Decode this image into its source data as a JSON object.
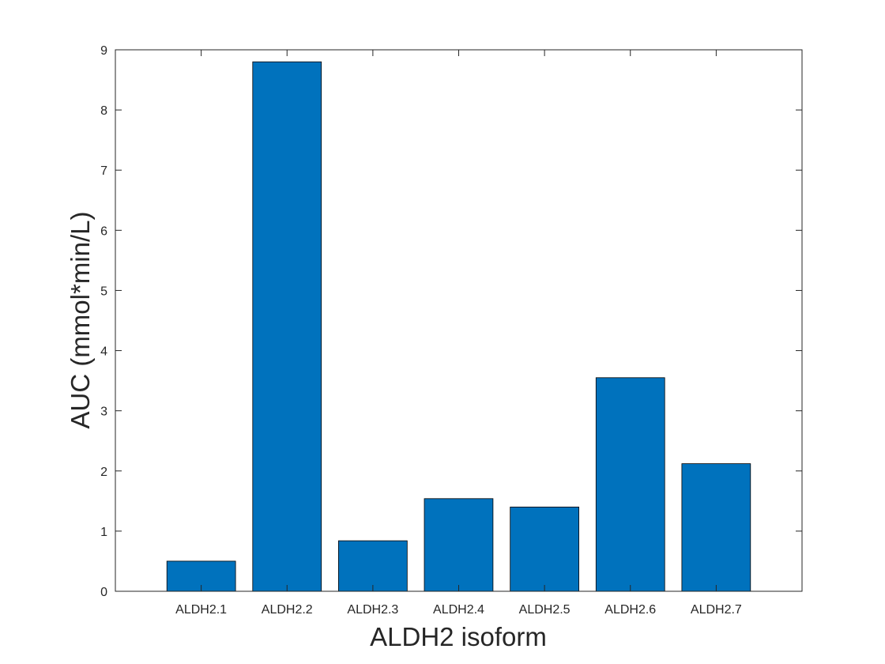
{
  "chart_data": {
    "type": "bar",
    "title": "",
    "xlabel": "ALDH2 isoform",
    "ylabel": "AUC (mmol*min/L)",
    "categories": [
      "ALDH2.1",
      "ALDH2.2",
      "ALDH2.3",
      "ALDH2.4",
      "ALDH2.5",
      "ALDH2.6",
      "ALDH2.7"
    ],
    "values": [
      0.5,
      8.8,
      0.84,
      1.54,
      1.4,
      3.55,
      2.12
    ],
    "ylim": [
      0,
      9
    ],
    "yticks": [
      0,
      1,
      2,
      3,
      4,
      5,
      6,
      7,
      8,
      9
    ],
    "bar_color": "#0072BD",
    "grid": false,
    "box": true
  }
}
